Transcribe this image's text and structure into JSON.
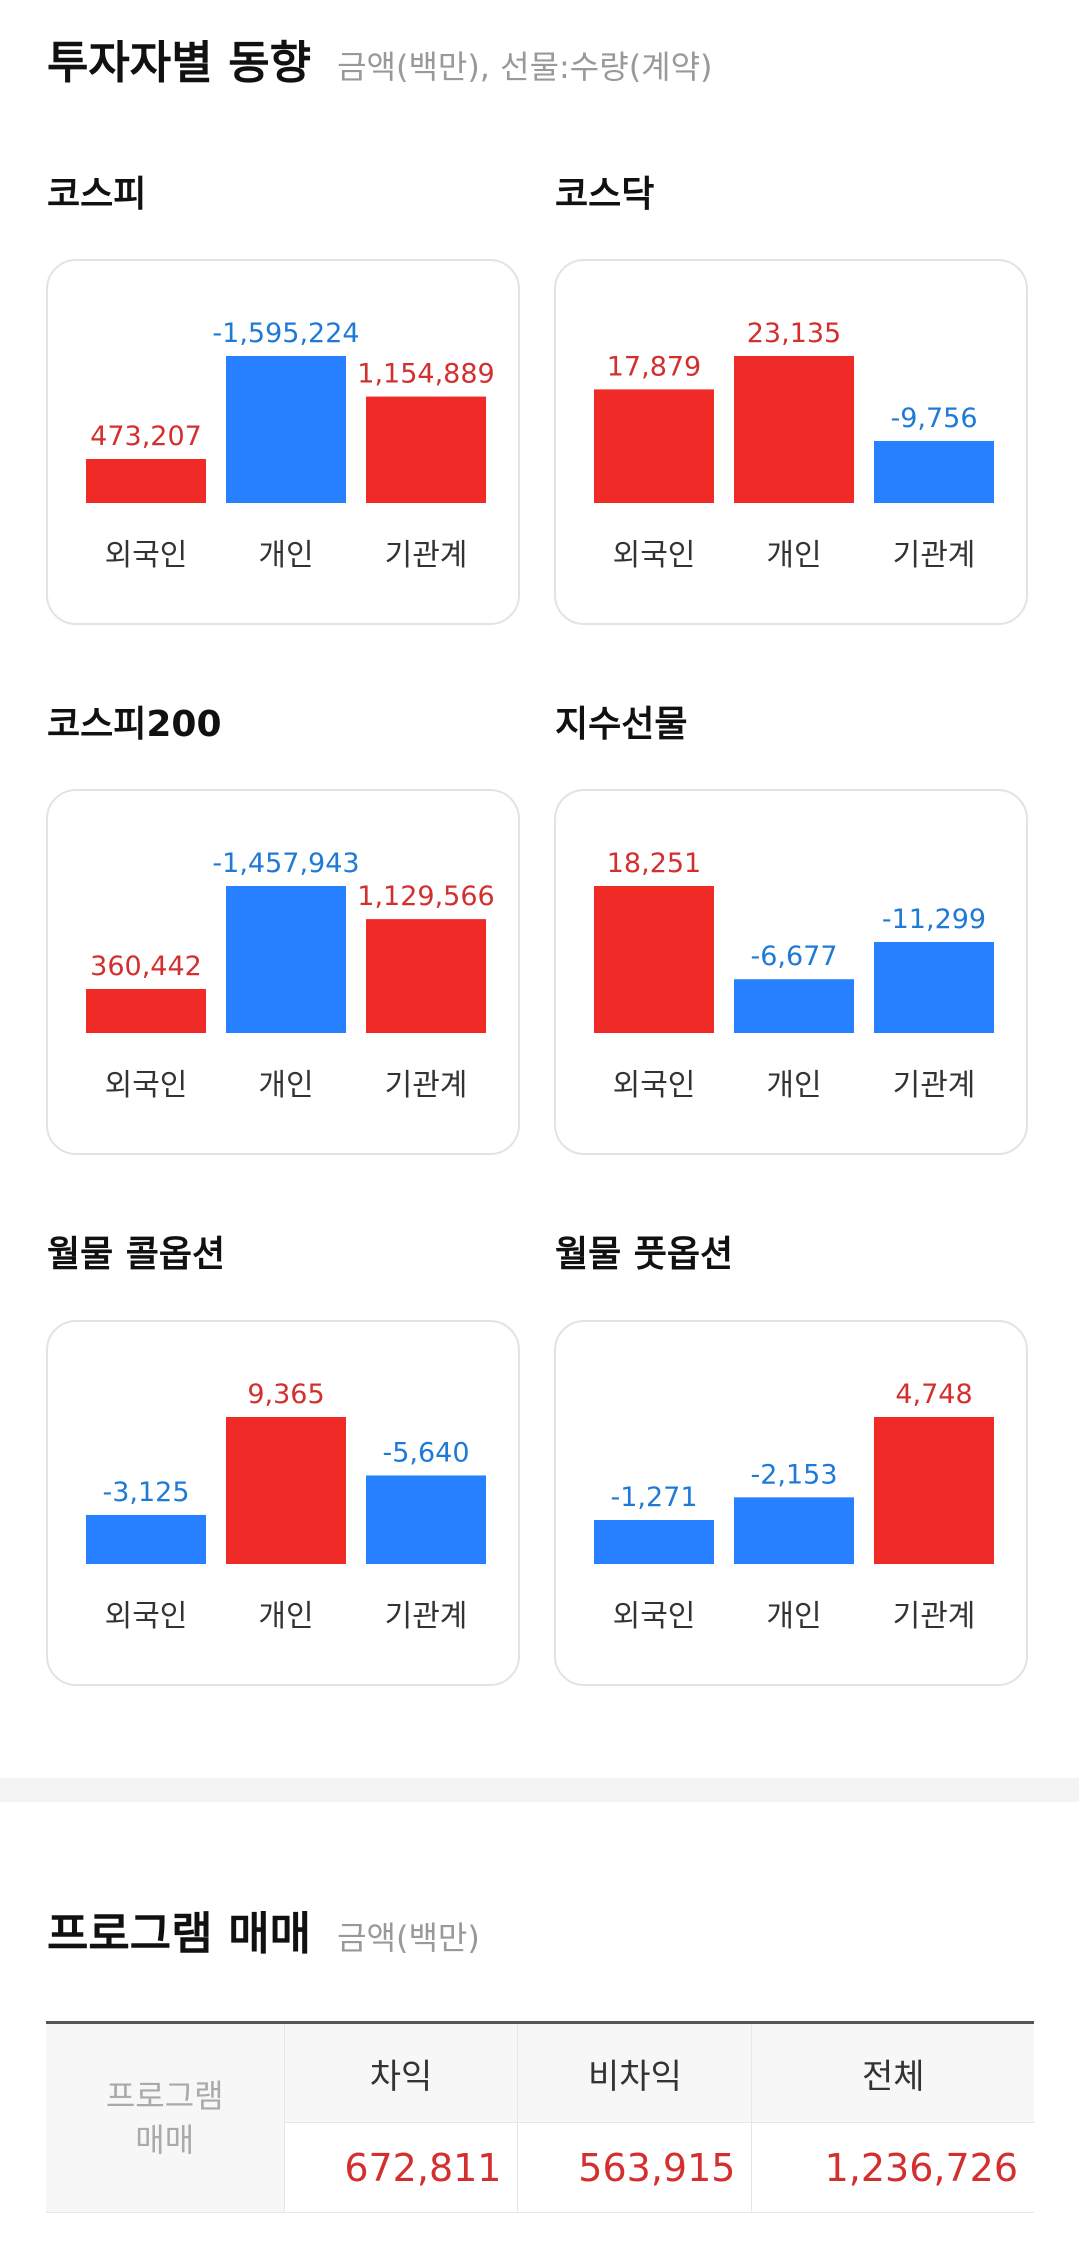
{
  "investor_trend": {
    "title": "투자자별 동향",
    "subtitle": "금액(백만), 선물:수량(계약)"
  },
  "colors": {
    "positive": "#f02b27",
    "negative": "#2680ff",
    "positive_text": "#d32f2f",
    "negative_text": "#1f7ad6"
  },
  "chart_data": [
    {
      "type": "bar",
      "title": "코스피",
      "categories": [
        "외국인",
        "개인",
        "기관계"
      ],
      "values": [
        473207,
        -1595224,
        1154889
      ],
      "labels": [
        "473,207",
        "-1,595,224",
        "1,154,889"
      ]
    },
    {
      "type": "bar",
      "title": "코스닥",
      "categories": [
        "외국인",
        "개인",
        "기관계"
      ],
      "values": [
        17879,
        23135,
        -9756
      ],
      "labels": [
        "17,879",
        "23,135",
        "-9,756"
      ]
    },
    {
      "type": "bar",
      "title": "코스피200",
      "categories": [
        "외국인",
        "개인",
        "기관계"
      ],
      "values": [
        360442,
        -1457943,
        1129566
      ],
      "labels": [
        "360,442",
        "-1,457,943",
        "1,129,566"
      ]
    },
    {
      "type": "bar",
      "title": "지수선물",
      "categories": [
        "외국인",
        "개인",
        "기관계"
      ],
      "values": [
        18251,
        -6677,
        -11299
      ],
      "labels": [
        "18,251",
        "-6,677",
        "-11,299"
      ]
    },
    {
      "type": "bar",
      "title": "월물 콜옵션",
      "categories": [
        "외국인",
        "개인",
        "기관계"
      ],
      "values": [
        -3125,
        9365,
        -5640
      ],
      "labels": [
        "-3,125",
        "9,365",
        "-5,640"
      ]
    },
    {
      "type": "bar",
      "title": "월물 풋옵션",
      "categories": [
        "외국인",
        "개인",
        "기관계"
      ],
      "values": [
        -1271,
        -2153,
        4748
      ],
      "labels": [
        "-1,271",
        "-2,153",
        "4,748"
      ]
    }
  ],
  "program_trading": {
    "title": "프로그램 매매",
    "subtitle": "금액(백만)",
    "row_label_line1": "프로그램",
    "row_label_line2": "매매",
    "columns": [
      "차익",
      "비차익",
      "전체"
    ],
    "values": [
      "672,811",
      "563,915",
      "1,236,726"
    ]
  }
}
